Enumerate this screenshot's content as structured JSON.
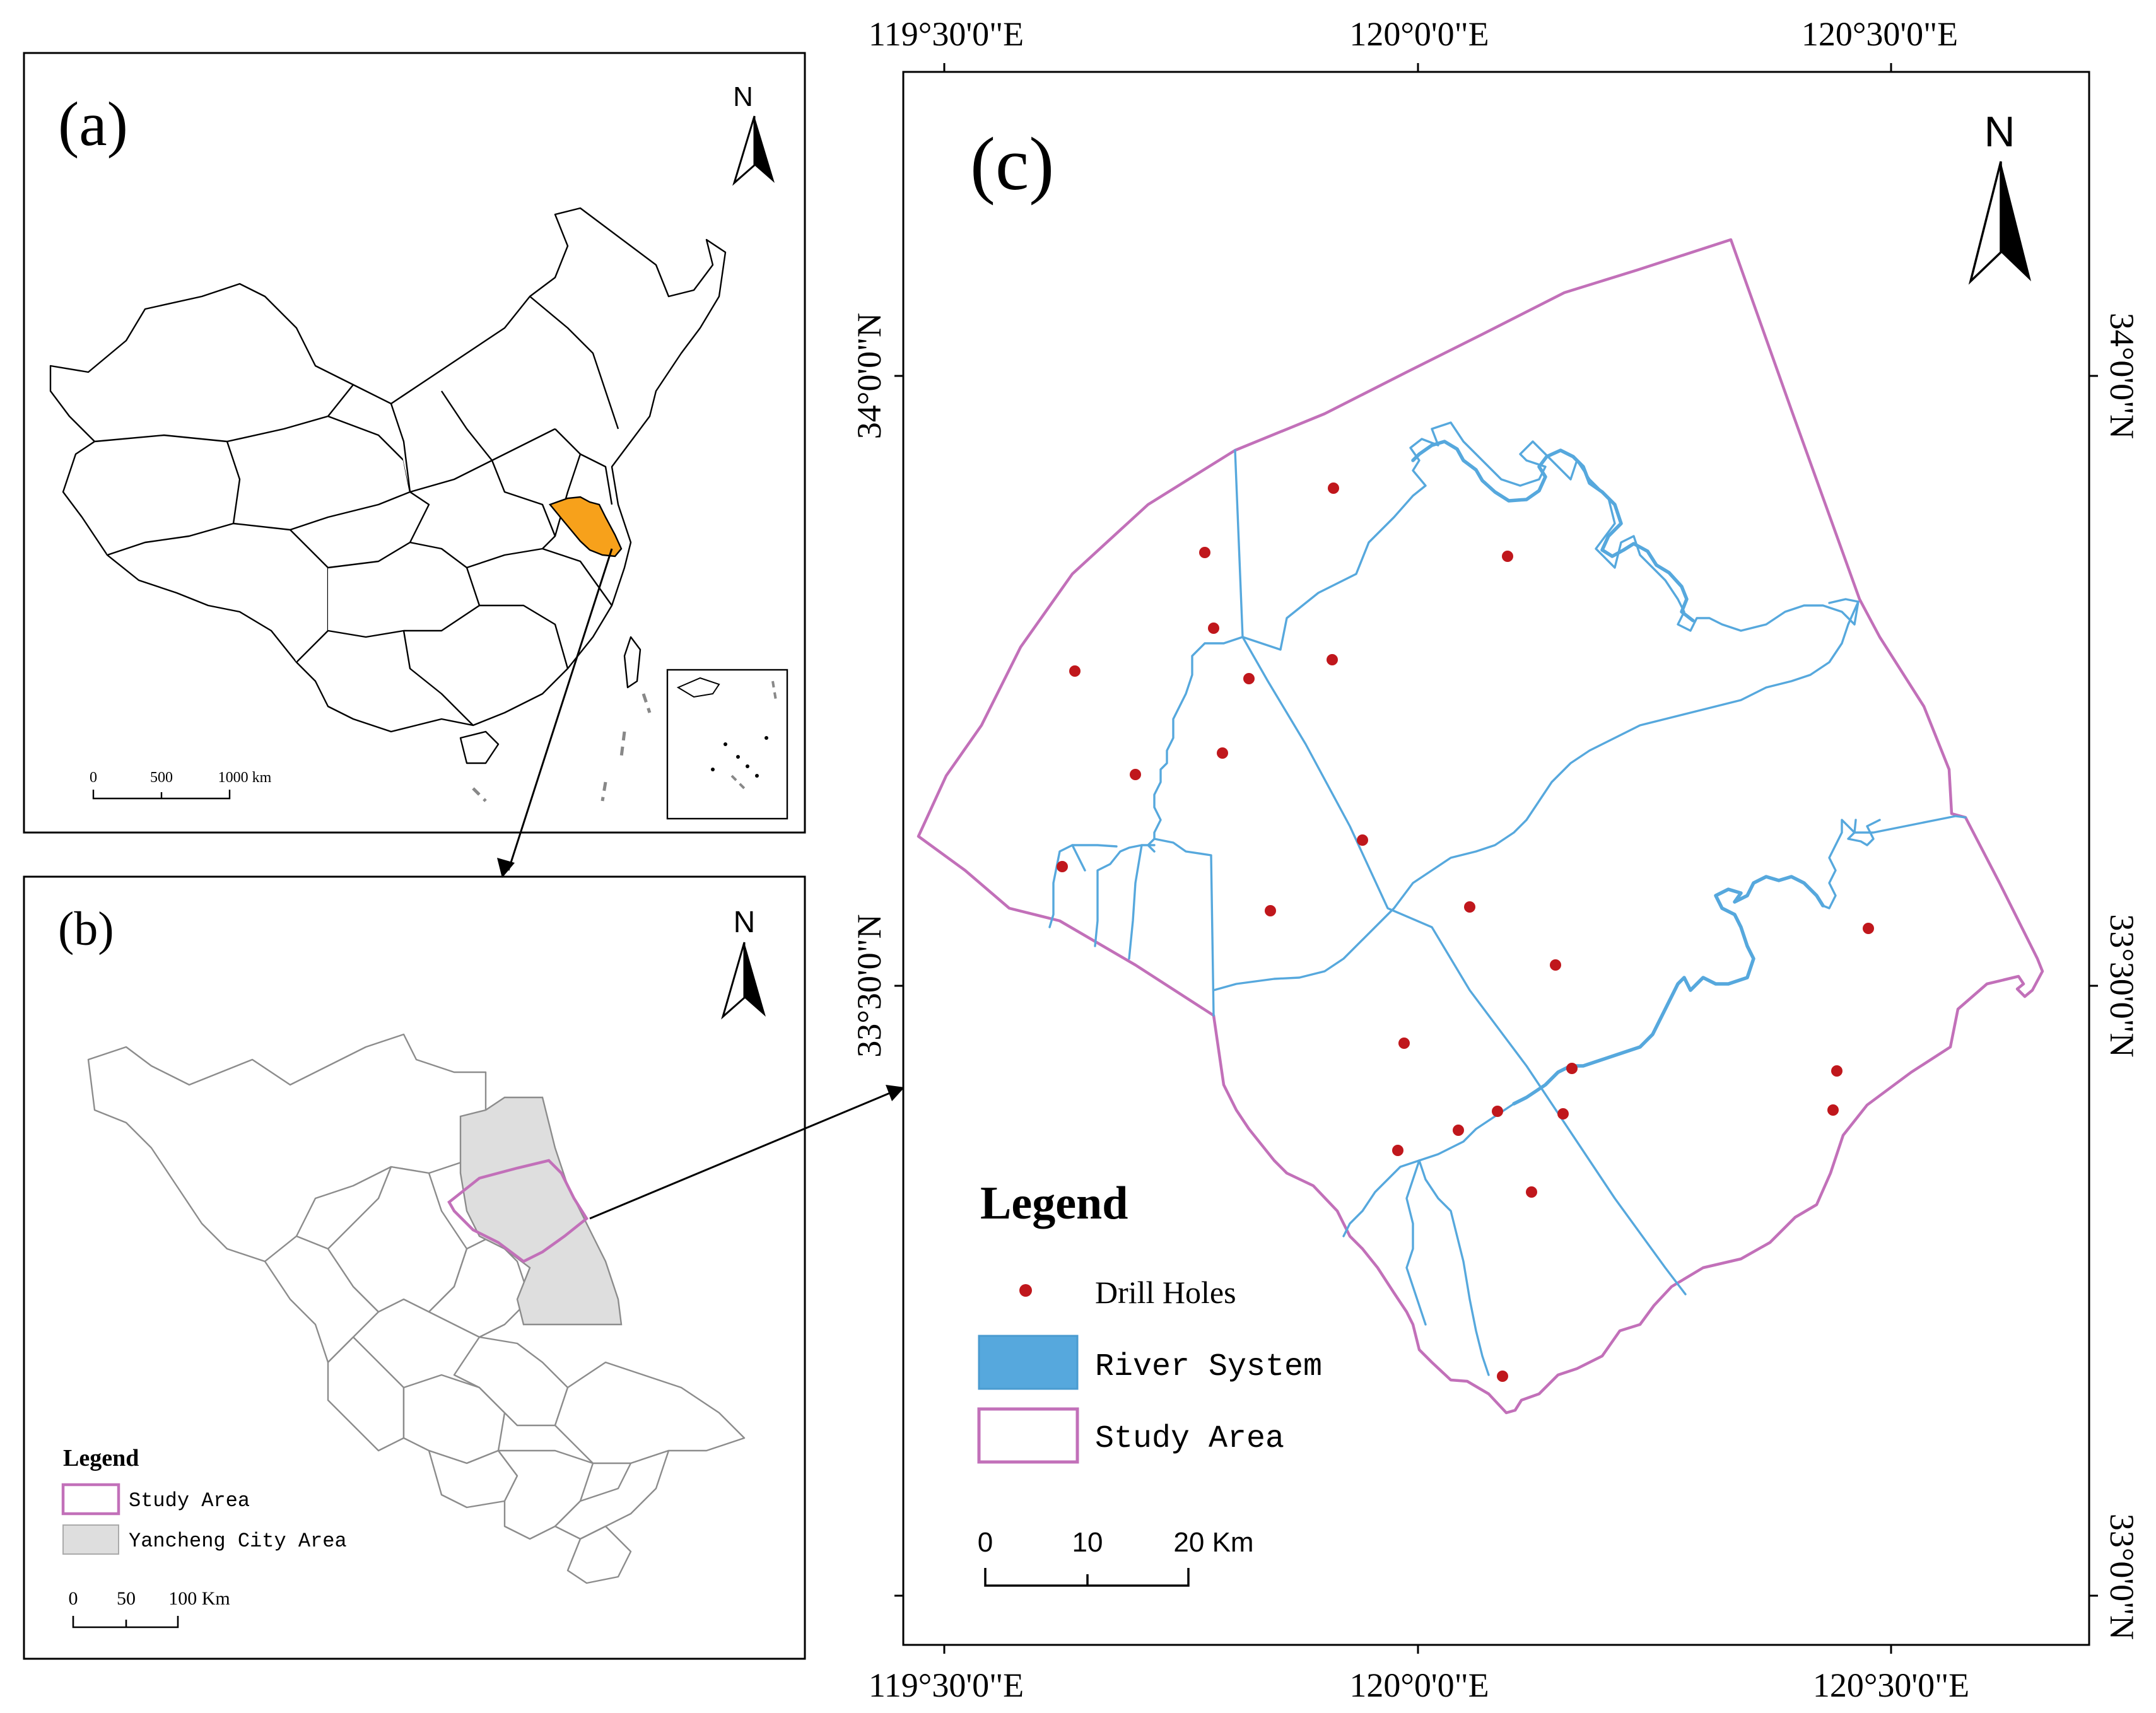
{
  "panel_a": {
    "label": "(a)",
    "north": "N",
    "scale_labels": [
      "0",
      "500",
      "1000 km"
    ]
  },
  "panel_b": {
    "label": "(b)",
    "north": "N",
    "legend_title": "Legend",
    "legend_items": [
      "Study Area",
      "Yancheng City Area"
    ],
    "scale_labels": [
      "0",
      "50",
      "100 Km"
    ]
  },
  "panel_c": {
    "label": "(c)",
    "north": "N",
    "lon_labels_top": [
      "119°30'0\"E",
      "120°0'0\"E",
      "120°30'0\"E"
    ],
    "lon_labels_bottom": [
      "119°30'0\"E",
      "120°0'0\"E",
      "120°30'0\"E"
    ],
    "lat_labels_left": [
      "34°0'0\"N",
      "33°30'0\"N"
    ],
    "lat_labels_right": [
      "34°0'0\"N",
      "33°30'0\"N",
      "33°0'0\"N"
    ],
    "legend_title": "Legend",
    "legend_items": [
      "Drill Holes",
      "River System",
      "Study Area"
    ],
    "scale_labels": [
      "0",
      "10",
      "20 Km"
    ]
  },
  "colors": {
    "highlight_province": "#f7a11b",
    "study_area": "#c270b9",
    "river_system": "#56a8dd",
    "drill_holes": "#c0171c",
    "yancheng_area": "#dedede"
  },
  "icons": [
    "north-arrow-icon",
    "drill-hole-icon"
  ]
}
